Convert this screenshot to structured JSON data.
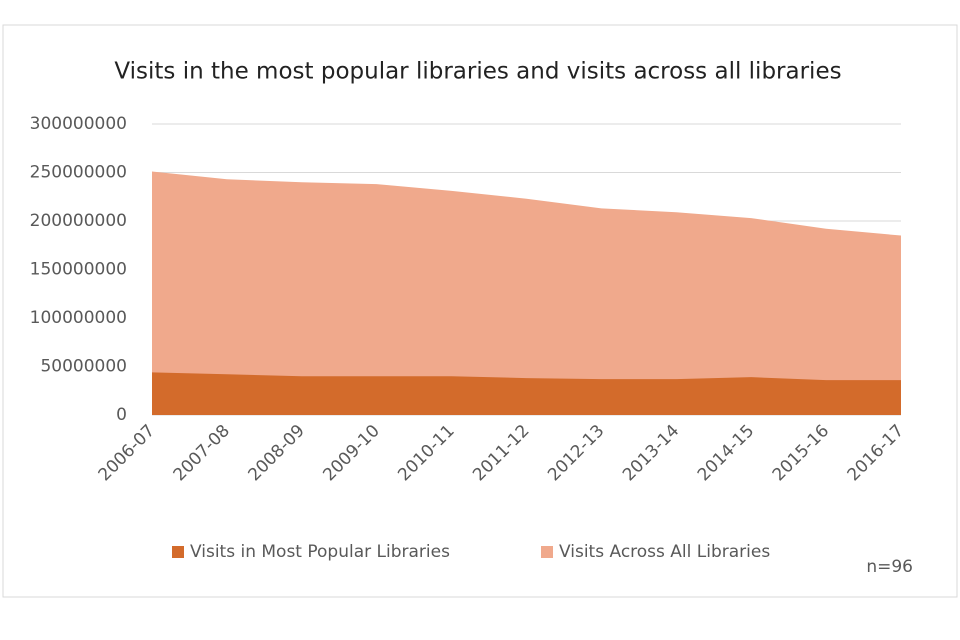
{
  "chart_data": {
    "type": "area",
    "title": "Visits in the most popular libraries and visits across all libraries",
    "categories": [
      "2006-07",
      "2007-08",
      "2008-09",
      "2009-10",
      "2010-11",
      "2011-12",
      "2012-13",
      "2013-14",
      "2014-15",
      "2015-16",
      "2016-17"
    ],
    "series": [
      {
        "name": "Visits in Most Popular Libraries",
        "color": "#d36b2b",
        "values": [
          44000000,
          42000000,
          40000000,
          40000000,
          40000000,
          38000000,
          37000000,
          37000000,
          39000000,
          36000000,
          36000000
        ]
      },
      {
        "name": "Visits Across All Libraries",
        "color": "#f0a98c",
        "values": [
          251000000,
          243000000,
          240000000,
          238000000,
          231000000,
          223000000,
          213000000,
          209000000,
          203000000,
          192000000,
          185000000
        ]
      }
    ],
    "ylim": [
      0,
      300000000
    ],
    "yticks": [
      0,
      50000000,
      100000000,
      150000000,
      200000000,
      250000000,
      300000000
    ],
    "grid": true,
    "legend": "bottom",
    "annotation": "n=96"
  }
}
